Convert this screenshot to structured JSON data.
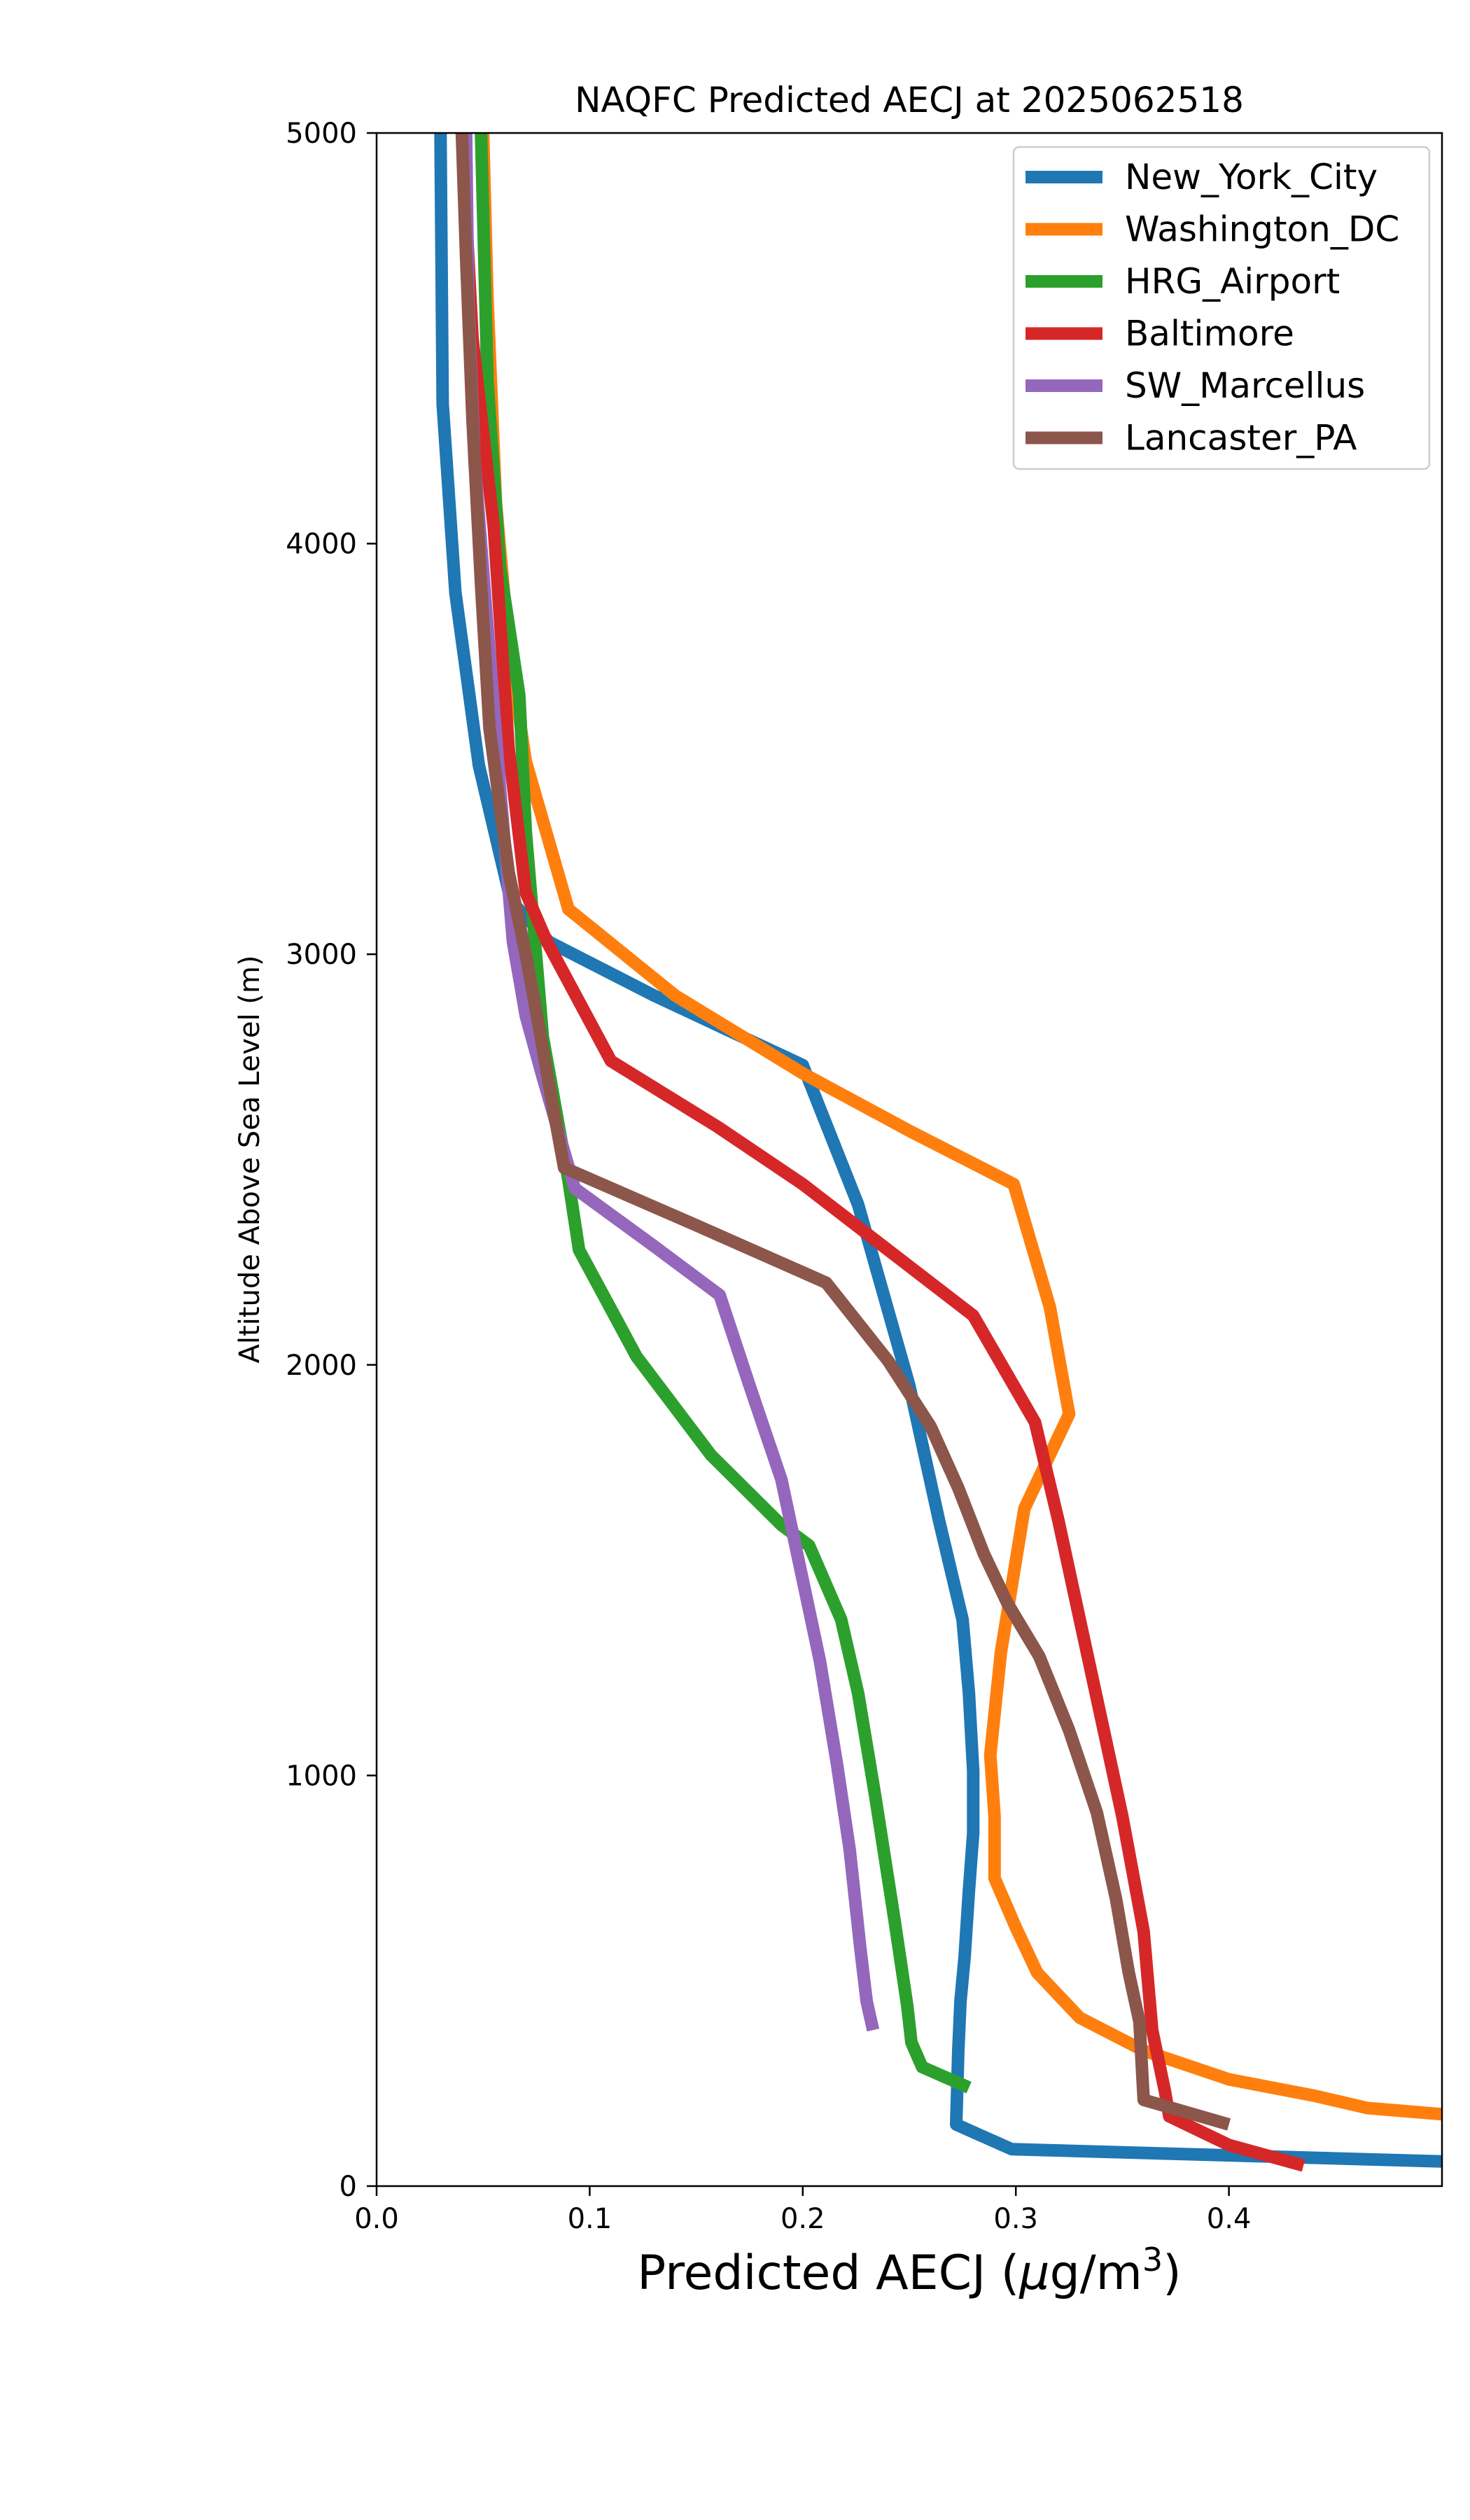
{
  "chart_data": {
    "type": "line",
    "title": "NAQFC Predicted AECJ at 2025062518",
    "xlabel": "Predicted AECJ (μg/m³)",
    "xlabel_parts": {
      "main": "Predicted AECJ (",
      "mu": "μ",
      "unit": "g/m",
      "sup": "3",
      "close": ")"
    },
    "ylabel": "Altitude Above Sea Level (m)",
    "xlim": [
      0.0,
      0.5
    ],
    "ylim": [
      0,
      5000
    ],
    "xticks": [
      0.0,
      0.1,
      0.2,
      0.3,
      0.4
    ],
    "xtick_labels": [
      "0.0",
      "0.1",
      "0.2",
      "0.3",
      "0.4"
    ],
    "yticks": [
      0,
      1000,
      2000,
      3000,
      4000,
      5000
    ],
    "ytick_labels": [
      "0",
      "1000",
      "2000",
      "3000",
      "4000",
      "5000"
    ],
    "grid": false,
    "legend_position": "top-right",
    "series": [
      {
        "name": "New_York_City",
        "color": "#1f77b4",
        "points": [
          [
            0.03,
            5000
          ],
          [
            0.031,
            4340
          ],
          [
            0.037,
            3880
          ],
          [
            0.048,
            3460
          ],
          [
            0.063,
            3130
          ],
          [
            0.081,
            3030
          ],
          [
            0.13,
            2900
          ],
          [
            0.2,
            2730
          ],
          [
            0.226,
            2390
          ],
          [
            0.25,
            1950
          ],
          [
            0.264,
            1620
          ],
          [
            0.275,
            1380
          ],
          [
            0.278,
            1200
          ],
          [
            0.28,
            1010
          ],
          [
            0.28,
            860
          ],
          [
            0.278,
            720
          ],
          [
            0.276,
            560
          ],
          [
            0.274,
            450
          ],
          [
            0.273,
            330
          ],
          [
            0.272,
            150
          ],
          [
            0.298,
            90
          ],
          [
            0.5,
            60
          ]
        ]
      },
      {
        "name": "Washington_DC",
        "color": "#ff7f0e",
        "points": [
          [
            0.05,
            5000
          ],
          [
            0.052,
            4600
          ],
          [
            0.056,
            4100
          ],
          [
            0.062,
            3750
          ],
          [
            0.07,
            3470
          ],
          [
            0.09,
            3110
          ],
          [
            0.14,
            2900
          ],
          [
            0.2,
            2710
          ],
          [
            0.25,
            2570
          ],
          [
            0.299,
            2440
          ],
          [
            0.316,
            2140
          ],
          [
            0.325,
            1880
          ],
          [
            0.304,
            1650
          ],
          [
            0.293,
            1300
          ],
          [
            0.288,
            1050
          ],
          [
            0.29,
            900
          ],
          [
            0.29,
            750
          ],
          [
            0.3,
            630
          ],
          [
            0.31,
            520
          ],
          [
            0.33,
            410
          ],
          [
            0.36,
            330
          ],
          [
            0.4,
            260
          ],
          [
            0.44,
            220
          ],
          [
            0.465,
            190
          ],
          [
            0.5,
            175
          ]
        ]
      },
      {
        "name": "HRG_Airport",
        "color": "#2ca02c",
        "points": [
          [
            0.049,
            5000
          ],
          [
            0.052,
            4400
          ],
          [
            0.058,
            3940
          ],
          [
            0.067,
            3630
          ],
          [
            0.07,
            3300
          ],
          [
            0.078,
            2800
          ],
          [
            0.09,
            2450
          ],
          [
            0.095,
            2280
          ],
          [
            0.122,
            2020
          ],
          [
            0.157,
            1780
          ],
          [
            0.19,
            1610
          ],
          [
            0.203,
            1560
          ],
          [
            0.218,
            1380
          ],
          [
            0.226,
            1200
          ],
          [
            0.234,
            950
          ],
          [
            0.243,
            650
          ],
          [
            0.249,
            440
          ],
          [
            0.251,
            350
          ],
          [
            0.256,
            290
          ],
          [
            0.278,
            240
          ]
        ]
      },
      {
        "name": "Baltimore",
        "color": "#d62728",
        "points": [
          [
            0.04,
            5000
          ],
          [
            0.045,
            4500
          ],
          [
            0.055,
            4040
          ],
          [
            0.062,
            3500
          ],
          [
            0.07,
            3150
          ],
          [
            0.08,
            3030
          ],
          [
            0.11,
            2740
          ],
          [
            0.16,
            2580
          ],
          [
            0.2,
            2440
          ],
          [
            0.24,
            2280
          ],
          [
            0.28,
            2120
          ],
          [
            0.309,
            1860
          ],
          [
            0.32,
            1620
          ],
          [
            0.33,
            1380
          ],
          [
            0.34,
            1140
          ],
          [
            0.35,
            900
          ],
          [
            0.36,
            620
          ],
          [
            0.364,
            380
          ],
          [
            0.37,
            230
          ],
          [
            0.372,
            170
          ],
          [
            0.4,
            100
          ],
          [
            0.435,
            50
          ]
        ]
      },
      {
        "name": "SW_Marcellus",
        "color": "#9467bd",
        "points": [
          [
            0.042,
            5000
          ],
          [
            0.043,
            4600
          ],
          [
            0.046,
            4200
          ],
          [
            0.052,
            3800
          ],
          [
            0.058,
            3400
          ],
          [
            0.064,
            3030
          ],
          [
            0.07,
            2850
          ],
          [
            0.078,
            2700
          ],
          [
            0.093,
            2430
          ],
          [
            0.13,
            2290
          ],
          [
            0.161,
            2170
          ],
          [
            0.175,
            1950
          ],
          [
            0.19,
            1720
          ],
          [
            0.199,
            1500
          ],
          [
            0.208,
            1280
          ],
          [
            0.216,
            1030
          ],
          [
            0.222,
            820
          ],
          [
            0.227,
            580
          ],
          [
            0.23,
            450
          ],
          [
            0.233,
            380
          ]
        ]
      },
      {
        "name": "Lancaster_PA",
        "color": "#8c564b",
        "points": [
          [
            0.04,
            5000
          ],
          [
            0.042,
            4700
          ],
          [
            0.045,
            4300
          ],
          [
            0.049,
            3900
          ],
          [
            0.053,
            3550
          ],
          [
            0.062,
            3200
          ],
          [
            0.07,
            3000
          ],
          [
            0.077,
            2800
          ],
          [
            0.082,
            2650
          ],
          [
            0.088,
            2480
          ],
          [
            0.15,
            2340
          ],
          [
            0.211,
            2200
          ],
          [
            0.24,
            2010
          ],
          [
            0.26,
            1850
          ],
          [
            0.273,
            1700
          ],
          [
            0.285,
            1540
          ],
          [
            0.296,
            1420
          ],
          [
            0.311,
            1290
          ],
          [
            0.325,
            1110
          ],
          [
            0.338,
            910
          ],
          [
            0.347,
            700
          ],
          [
            0.353,
            520
          ],
          [
            0.358,
            400
          ],
          [
            0.36,
            210
          ],
          [
            0.4,
            150
          ]
        ]
      }
    ]
  }
}
